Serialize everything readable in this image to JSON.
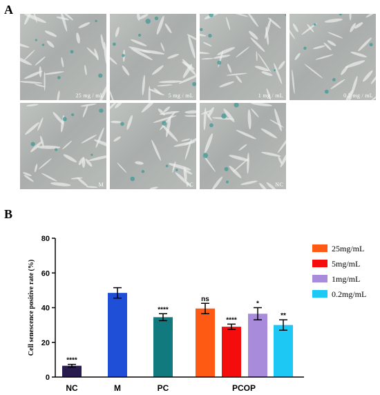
{
  "panel_a_label": "A",
  "panel_b_label": "B",
  "micrographs": [
    {
      "label": "25 mg / mL"
    },
    {
      "label": "5 mg / mL"
    },
    {
      "label": "1 mg / mL"
    },
    {
      "label": "0.2 mg / mL"
    },
    {
      "label": "M"
    },
    {
      "label": "PC"
    },
    {
      "label": "NC"
    }
  ],
  "chart_data": {
    "type": "bar",
    "ylabel": "Cell senescence positive rate (%)",
    "ylim": [
      0,
      80
    ],
    "yticks": [
      "0",
      "20",
      "40",
      "60",
      "80"
    ],
    "groups": [
      "NC",
      "M",
      "PC",
      "PCOP"
    ],
    "bars": [
      {
        "group": "NC",
        "value": 6.5,
        "error": 0.8,
        "color": "#2a1b4e",
        "sig": "****"
      },
      {
        "group": "M",
        "value": 48.5,
        "error": 3.0,
        "color": "#1f4fd6",
        "sig": ""
      },
      {
        "group": "PC",
        "value": 34.5,
        "error": 2.0,
        "color": "#117a7e",
        "sig": "****"
      },
      {
        "group": "PCOP",
        "series": "25mg/mL",
        "value": 39.5,
        "error": 3.0,
        "color": "#ff5a14",
        "sig": "ns"
      },
      {
        "group": "PCOP",
        "series": "5mg/mL",
        "value": 29.0,
        "error": 1.5,
        "color": "#f50d0d",
        "sig": "****"
      },
      {
        "group": "PCOP",
        "series": "1mg/mL",
        "value": 36.5,
        "error": 3.5,
        "color": "#a98bdb",
        "sig": "*"
      },
      {
        "group": "PCOP",
        "series": "0.2mg/mL",
        "value": 30.0,
        "error": 3.0,
        "color": "#1ec8f5",
        "sig": "**"
      }
    ],
    "legend": {
      "placement": "right",
      "entries": [
        {
          "name": "25mg/mL",
          "color": "#ff5a14"
        },
        {
          "name": "5mg/mL",
          "color": "#f50d0d"
        },
        {
          "name": "1mg/mL",
          "color": "#a98bdb"
        },
        {
          "name": "0.2mg/mL",
          "color": "#1ec8f5"
        }
      ]
    }
  }
}
